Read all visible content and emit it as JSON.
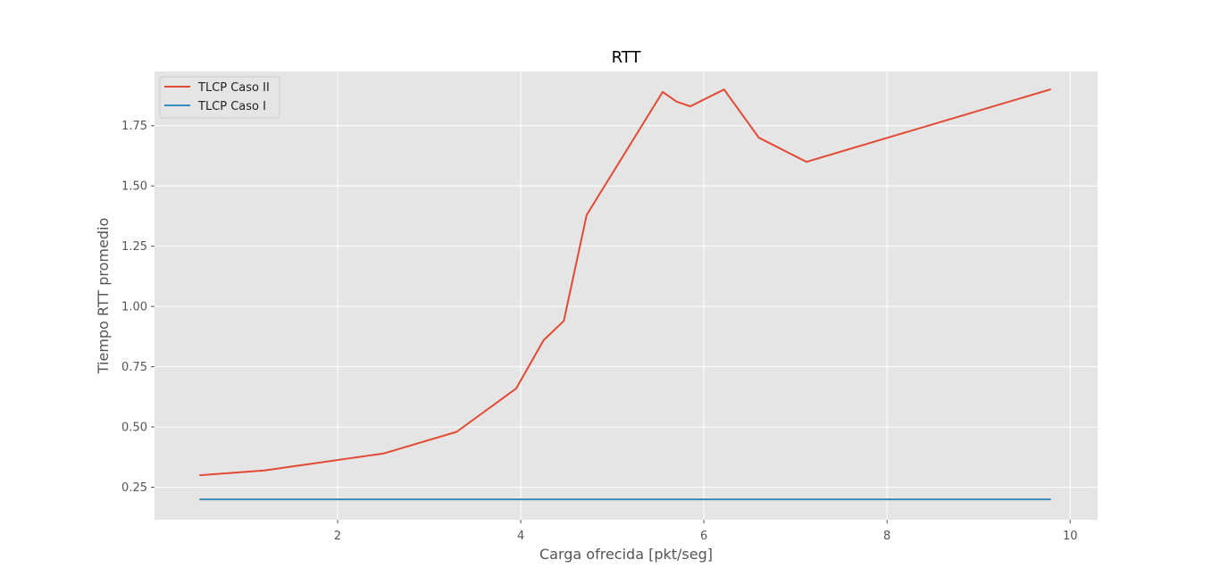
{
  "chart_data": {
    "type": "line",
    "title": "RTT",
    "xlabel": "Carga ofrecida [pkt/seg]",
    "ylabel": "Tiempo RTT promedio",
    "xlim": [
      0.0,
      10.3
    ],
    "ylim": [
      0.115,
      1.975
    ],
    "xticks": [
      2,
      4,
      6,
      8,
      10
    ],
    "xtick_labels": [
      "2",
      "4",
      "6",
      "8",
      "10"
    ],
    "yticks": [
      0.25,
      0.5,
      0.75,
      1.0,
      1.25,
      1.5,
      1.75
    ],
    "ytick_labels": [
      "0.25",
      "0.50",
      "0.75",
      "1.00",
      "1.25",
      "1.50",
      "1.75"
    ],
    "grid": true,
    "legend_position": "top-left",
    "series": [
      {
        "name": "TLCP Caso II",
        "color": "#e24a33",
        "x": [
          0.5,
          1.2,
          2.5,
          3.3,
          3.95,
          4.25,
          4.47,
          4.72,
          5.55,
          5.7,
          5.85,
          6.22,
          6.6,
          7.12,
          9.78
        ],
        "y": [
          0.3,
          0.32,
          0.39,
          0.48,
          0.66,
          0.86,
          0.94,
          1.38,
          1.89,
          1.85,
          1.83,
          1.9,
          1.7,
          1.6,
          1.9
        ]
      },
      {
        "name": "TLCP Caso I",
        "color": "#348abd",
        "x": [
          0.5,
          9.78
        ],
        "y": [
          0.2,
          0.2
        ]
      }
    ]
  }
}
